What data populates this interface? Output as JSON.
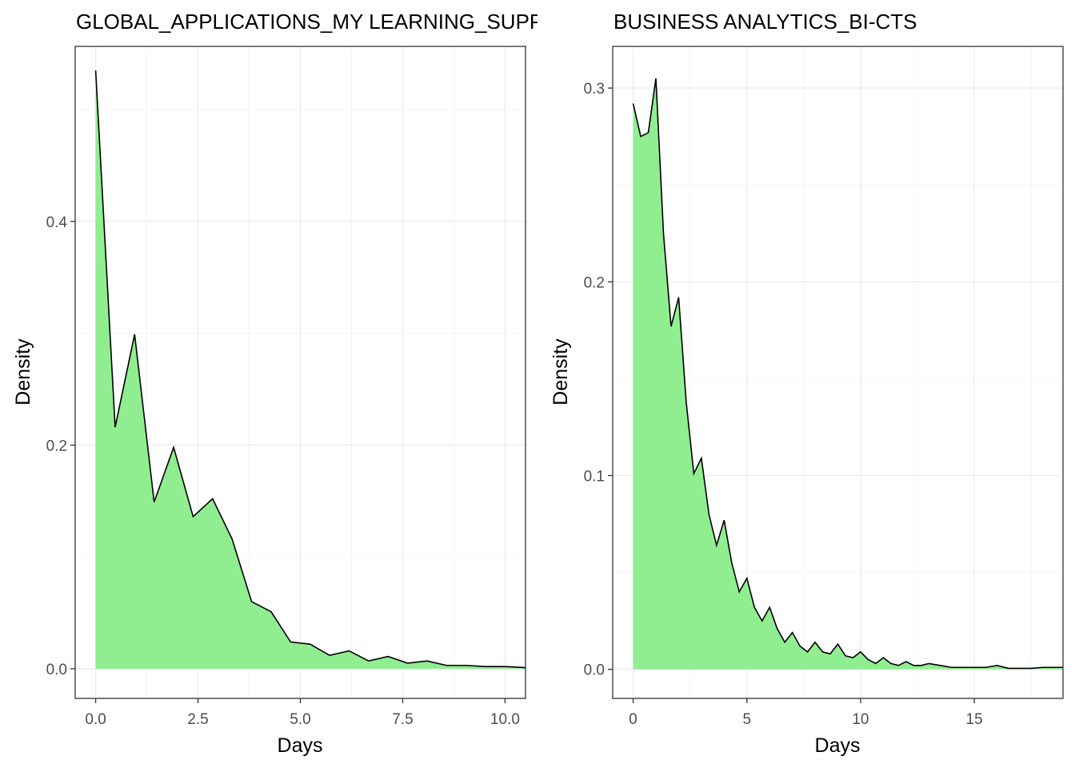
{
  "colors": {
    "fill": "#90ee90",
    "line": "#000000"
  },
  "chart_data": [
    {
      "type": "area",
      "title": "GLOBAL_APPLICATIONS_MY LEARNING_SUPPORT",
      "xlabel": "Days",
      "ylabel": "Density",
      "xlim": [
        -0.5,
        10.5
      ],
      "ylim": [
        -0.0265,
        0.5565
      ],
      "xticks": [
        0,
        2.5,
        5,
        7.5,
        10
      ],
      "xtick_labels": [
        "0.0",
        "2.5",
        "5.0",
        "7.5",
        "10.0"
      ],
      "yticks": [
        0,
        0.2,
        0.4
      ],
      "ytick_labels": [
        "0.0",
        "0.2",
        "0.4"
      ],
      "grid": true,
      "x": [
        0,
        0.476,
        0.952,
        1.429,
        1.905,
        2.381,
        2.857,
        3.333,
        3.81,
        4.286,
        4.762,
        5.238,
        5.714,
        6.19,
        6.667,
        7.143,
        7.619,
        8.095,
        8.571,
        9.048,
        9.524,
        10,
        10.5
      ],
      "values": [
        0.535,
        0.216,
        0.299,
        0.149,
        0.198,
        0.136,
        0.152,
        0.116,
        0.06,
        0.051,
        0.024,
        0.022,
        0.012,
        0.016,
        0.007,
        0.011,
        0.005,
        0.007,
        0.003,
        0.003,
        0.002,
        0.002,
        0.001
      ]
    },
    {
      "type": "area",
      "title": "BUSINESS ANALYTICS_BI-CTS",
      "xlabel": "Days",
      "ylabel": "Density",
      "xlim": [
        -0.9,
        18.9
      ],
      "ylim": [
        -0.015,
        0.3215
      ],
      "xticks": [
        0,
        5,
        10,
        15
      ],
      "xtick_labels": [
        "0",
        "5",
        "10",
        "15"
      ],
      "yticks": [
        0,
        0.1,
        0.2,
        0.3
      ],
      "ytick_labels": [
        "0.0",
        "0.1",
        "0.2",
        "0.3"
      ],
      "grid": true,
      "x": [
        0,
        0.333,
        0.667,
        1,
        1.333,
        1.667,
        2,
        2.333,
        2.667,
        3,
        3.333,
        3.667,
        4,
        4.333,
        4.667,
        5,
        5.333,
        5.667,
        6,
        6.333,
        6.667,
        7,
        7.333,
        7.667,
        8,
        8.333,
        8.667,
        9,
        9.333,
        9.667,
        10,
        10.333,
        10.667,
        11,
        11.333,
        11.667,
        12,
        12.333,
        12.667,
        13,
        13.5,
        14,
        14.5,
        15,
        15.5,
        16,
        16.5,
        17,
        17.5,
        18,
        18.9
      ],
      "values": [
        0.292,
        0.275,
        0.277,
        0.305,
        0.225,
        0.177,
        0.192,
        0.138,
        0.101,
        0.109,
        0.08,
        0.064,
        0.077,
        0.055,
        0.04,
        0.047,
        0.032,
        0.025,
        0.032,
        0.021,
        0.014,
        0.019,
        0.012,
        0.009,
        0.014,
        0.009,
        0.008,
        0.013,
        0.007,
        0.006,
        0.009,
        0.005,
        0.003,
        0.006,
        0.003,
        0.002,
        0.004,
        0.002,
        0.002,
        0.003,
        0.002,
        0.001,
        0.001,
        0.001,
        0.001,
        0.002,
        0.0005,
        0.0005,
        0.0005,
        0.001,
        0.001
      ]
    }
  ]
}
